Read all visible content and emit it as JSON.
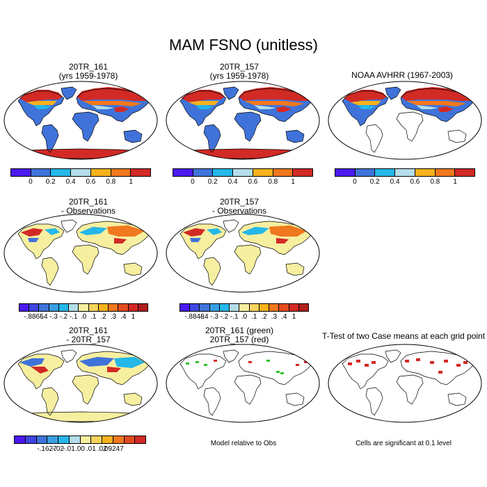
{
  "title": "MAM FSNO (unitless)",
  "colors": {
    "ocean": "#ffffff",
    "land_low": "#3f73d9",
    "land_pale": "#f7efa0",
    "snow_hi": "#d22a25",
    "snow_mid": "#f0781e",
    "snow_yel": "#f6b21c",
    "snow_cyan": "#25b7e8",
    "snow_light": "#b3dde9",
    "green": "#34c22d",
    "coast": "#000000"
  },
  "colorbars": {
    "abs": {
      "colors": [
        "#4b19f0",
        "#3f73d9",
        "#25b7e8",
        "#b3dde9",
        "#f6b21c",
        "#f0781e",
        "#d22a25"
      ],
      "labels": [
        "0",
        "0.2",
        "0.4",
        "0.6",
        "0.8",
        "1"
      ]
    },
    "diff1": {
      "colors": [
        "#4b19f0",
        "#3f46e0",
        "#3f73d9",
        "#3a9ee3",
        "#25b7e8",
        "#b3dde9",
        "#f7efa0",
        "#f6d35c",
        "#f6b21c",
        "#f0781e",
        "#e24b1f",
        "#d22a25",
        "#b01e1e"
      ],
      "labels": [
        "-.8865",
        "-.4",
        "-.3",
        "-.2",
        "-.1",
        ".0",
        ".1",
        ".2",
        ".3",
        ".4",
        "1"
      ]
    },
    "diff2": {
      "colors": [
        "#4b19f0",
        "#3f46e0",
        "#3f73d9",
        "#3a9ee3",
        "#25b7e8",
        "#b3dde9",
        "#f7efa0",
        "#f6d35c",
        "#f6b21c",
        "#f0781e",
        "#e24b1f",
        "#d22a25",
        "#b01e1e"
      ],
      "labels": [
        "-.8848",
        "-.4",
        "-.3",
        "-.2",
        "-.1",
        ".0",
        ".1",
        ".2",
        ".3",
        ".4",
        "1"
      ]
    },
    "diff3": {
      "colors": [
        "#4b19f0",
        "#3f46e0",
        "#3f73d9",
        "#3a9ee3",
        "#25b7e8",
        "#b3dde9",
        "#f7efa0",
        "#f6d35c",
        "#f6b21c",
        "#f0781e",
        "#e24b1f",
        "#d22a25"
      ],
      "labels": [
        "-.1627",
        "-.02",
        "-.01",
        ".00",
        ".01",
        ".02",
        ".09247"
      ]
    }
  },
  "panels": [
    {
      "id": "p1",
      "title1": "20TR_161",
      "title2": "(yrs 1959-1978)",
      "style": "abs",
      "antarctica": true
    },
    {
      "id": "p2",
      "title1": "20TR_157",
      "title2": "(yrs 1959-1978)",
      "style": "abs",
      "antarctica": true
    },
    {
      "id": "p3",
      "title1": "NOAA AVHRR (1967-2003)",
      "title2": "",
      "style": "abs",
      "antarctica": false
    },
    {
      "id": "p4",
      "title1": "20TR_161",
      "title2": "- Observations",
      "style": "diff",
      "antarctica": false
    },
    {
      "id": "p5",
      "title1": "20TR_157",
      "title2": "- Observations",
      "style": "diff",
      "antarctica": false
    },
    {
      "id": "p6",
      "title1": "20TR_161",
      "title2": "- 20TR_157",
      "style": "diff2",
      "antarctica": true
    },
    {
      "id": "p7",
      "title1": "20TR_161 (green)",
      "title2": "20TR_157 (red)",
      "style": "dots",
      "antarctica": false
    },
    {
      "id": "p8",
      "title1": "T-Test of two Case means at each grid point",
      "title2": "",
      "style": "ttest",
      "antarctica": false
    }
  ],
  "captions": {
    "model_rel": "Model relative to Obs",
    "significant": "Cells are significant at 0.1 level"
  }
}
